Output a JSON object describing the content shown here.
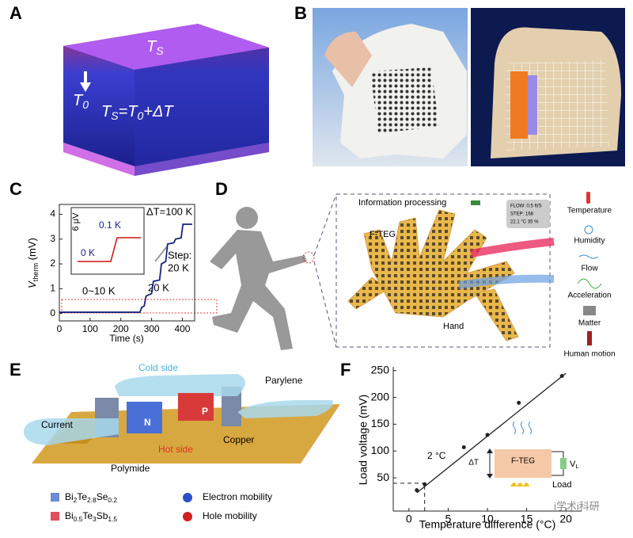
{
  "panels": {
    "letters": [
      "A",
      "B",
      "C",
      "D",
      "E",
      "F"
    ],
    "A": {
      "top": [
        "T",
        "S"
      ],
      "left": [
        "T",
        "0"
      ],
      "eq": [
        "T",
        "S",
        "=",
        "T",
        "0",
        "+ΔT"
      ]
    },
    "D": {
      "info": "Information processing",
      "teg": "F-TEG",
      "hand": "Hand",
      "screen": [
        "FLOW: 0.5 ft/S",
        "STEP: 168",
        "22.1 °C 35 %"
      ],
      "sensing": [
        "Temperature",
        "Humidity",
        "Flow",
        "Acceleration",
        "Matter",
        "Human motion"
      ]
    },
    "E": {
      "cold": "Cold side",
      "parylene": "Parylene",
      "current": "Current",
      "n": "N",
      "p": "P",
      "hot": "Hot side",
      "copper": "Copper",
      "polymide": "Polymide",
      "legend": [
        [
          "Bi",
          "2",
          "Te",
          "2.8",
          "Se",
          "0.2"
        ],
        "Electron mobility",
        [
          "Bi",
          "0.5",
          "Te",
          "3",
          "Sb",
          "1.5"
        ],
        "Hole mobility"
      ]
    },
    "watermark": "i学术i科研"
  },
  "chart_data": [
    {
      "type": "line",
      "x_label": "Time (s)",
      "y_label": [
        "V",
        "therm",
        " (mV)"
      ],
      "x": [
        0,
        262,
        268,
        276,
        282,
        290,
        300,
        306,
        326,
        332,
        346,
        352,
        372,
        378,
        396,
        402,
        432
      ],
      "values": [
        0.05,
        0.05,
        0.25,
        0.3,
        0.7,
        0.75,
        0.8,
        1.3,
        1.35,
        2.0,
        2.1,
        2.8,
        2.85,
        3.0,
        3.05,
        3.6,
        3.6
      ],
      "color": "#1a237e",
      "xlim": [
        0,
        440
      ],
      "ylim": [
        -0.3,
        4.4
      ],
      "xticks": [
        0,
        100,
        200,
        300,
        400
      ],
      "yticks": [
        0,
        1,
        2,
        3,
        4
      ],
      "annotations": [
        "ΔT=100 K",
        "Step:",
        "20 K",
        "20 K",
        "0~10 K"
      ],
      "inset": {
        "scale": "6 μV",
        "labels": [
          "0.1 K",
          "0 K"
        ]
      }
    },
    {
      "type": "scatter",
      "x_label": "Temperature difference (°C)",
      "y_label": "Load voltage (mV)",
      "points": {
        "x": [
          1,
          2,
          7,
          10,
          14,
          19.5
        ],
        "y": [
          27,
          38,
          107,
          130,
          190,
          240
        ]
      },
      "fit": {
        "x": [
          1,
          20
        ],
        "y": [
          22,
          245
        ]
      },
      "guides": {
        "x": 2,
        "y": 40
      },
      "annotation": "2 °C",
      "color": "#222222",
      "xlim": [
        -2,
        22
      ],
      "ylim": [
        -12,
        257
      ],
      "xticks": [
        0,
        5,
        10,
        15,
        20
      ],
      "yticks": [
        50,
        100,
        150,
        200,
        250
      ],
      "inset": {
        "dt": "ΔT",
        "box": "F-TEG",
        "v": [
          "V",
          "L"
        ],
        "load": "Load"
      }
    }
  ]
}
